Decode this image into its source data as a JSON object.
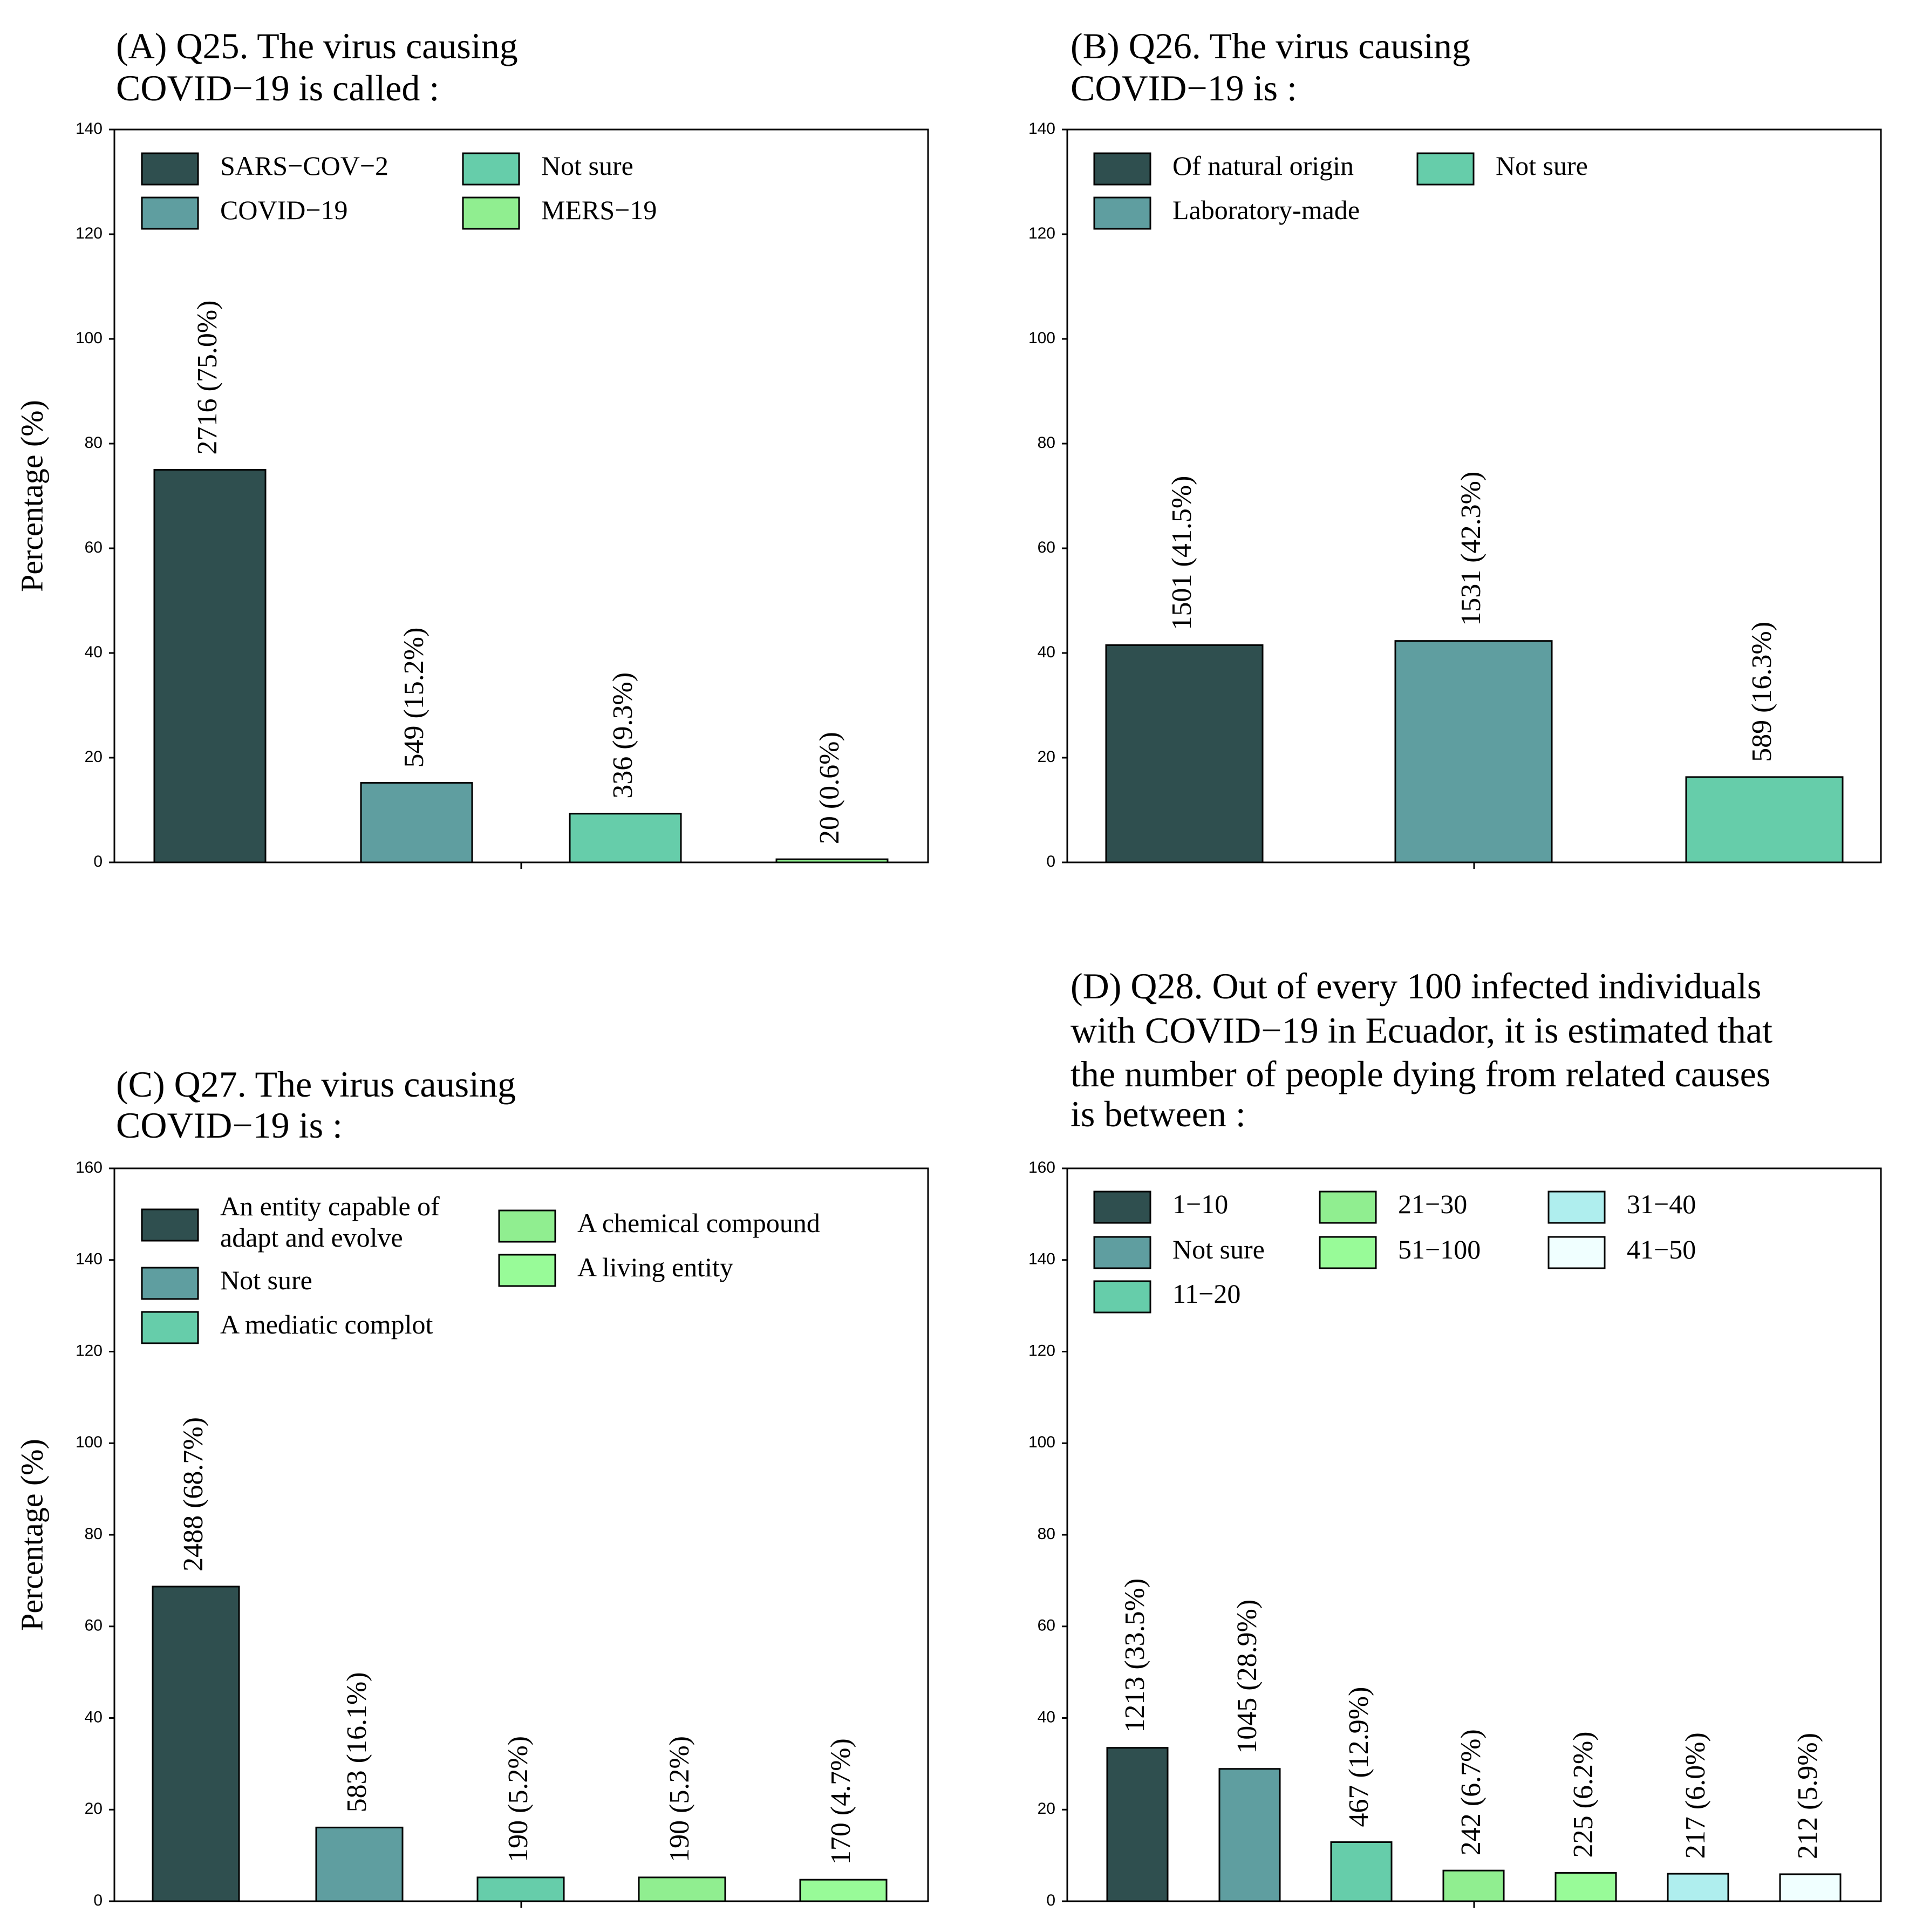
{
  "colors": {
    "c1": "#2f4f4f",
    "c2": "#5f9ea0",
    "c3": "#66cdaa",
    "c4": "#90ee90",
    "c5": "#98fb98",
    "c6": "#afeeee",
    "c7": "#f0ffff"
  },
  "chart_data": [
    {
      "type": "bar",
      "title_lines": [
        "(A) Q25. The virus causing",
        "COVID−19 is called :"
      ],
      "ylabel": "Percentage (%)",
      "ylim": [
        0,
        140
      ],
      "yticks": [
        "0",
        "20",
        "40",
        "60",
        "80",
        "100",
        "120",
        "140"
      ],
      "categories": [
        "SARS−COV−2",
        "COVID−19",
        "Not sure",
        "MERS−19"
      ],
      "values": [
        75.0,
        15.2,
        9.3,
        0.6
      ],
      "bar_labels": [
        "2716 (75.0%)",
        "549 (15.2%)",
        "336 (9.3%)",
        "20 (0.6%)"
      ],
      "bar_colors": [
        "#2f4f4f",
        "#5f9ea0",
        "#66cdaa",
        "#90ee90"
      ],
      "legend": [
        "SARS−COV−2",
        "COVID−19",
        "Not sure",
        "MERS−19"
      ]
    },
    {
      "type": "bar",
      "title_lines": [
        "(B) Q26. The virus causing",
        "COVID−19 is :"
      ],
      "ylabel": "",
      "ylim": [
        0,
        140
      ],
      "yticks": [
        "0",
        "20",
        "40",
        "60",
        "80",
        "100",
        "120",
        "140"
      ],
      "categories": [
        "Of natural origin",
        "Laboratory-made",
        "Not sure"
      ],
      "values": [
        41.5,
        42.3,
        16.3
      ],
      "bar_labels": [
        "1501 (41.5%)",
        "1531 (42.3%)",
        "589 (16.3%)"
      ],
      "bar_colors": [
        "#2f4f4f",
        "#5f9ea0",
        "#66cdaa"
      ],
      "legend": [
        "Of natural origin",
        "Laboratory-made",
        "Not sure"
      ]
    },
    {
      "type": "bar",
      "title_lines": [
        "(C) Q27. The virus causing",
        "COVID−19 is :"
      ],
      "ylabel": "Percentage (%)",
      "ylim": [
        0,
        160
      ],
      "yticks": [
        "0",
        "20",
        "40",
        "60",
        "80",
        "100",
        "120",
        "140",
        "160"
      ],
      "categories": [
        "An entity capable of adapt and evolve",
        "Not sure",
        "A mediatic complot",
        "A chemical compound",
        "A living entity"
      ],
      "values": [
        68.7,
        16.1,
        5.2,
        5.2,
        4.7
      ],
      "bar_labels": [
        "2488 (68.7%)",
        "583 (16.1%)",
        "190 (5.2%)",
        "190 (5.2%)",
        "170 (4.7%)"
      ],
      "bar_colors": [
        "#2f4f4f",
        "#5f9ea0",
        "#66cdaa",
        "#90ee90",
        "#98fb98"
      ],
      "legend": [
        "An entity capable of\nadapt and evolve",
        "Not sure",
        "A mediatic complot",
        "A chemical compound",
        "A living entity"
      ]
    },
    {
      "type": "bar",
      "title_lines": [
        "(D) Q28. Out of every 100 infected individuals",
        "with COVID−19 in Ecuador, it is estimated that",
        "the number of people dying from related causes",
        "is between :"
      ],
      "ylabel": "",
      "ylim": [
        0,
        160
      ],
      "yticks": [
        "0",
        "20",
        "40",
        "60",
        "80",
        "100",
        "120",
        "140",
        "160"
      ],
      "categories": [
        "1−10",
        "Not sure",
        "11−20",
        "21−30",
        "51−100",
        "31−40",
        "41−50"
      ],
      "values": [
        33.5,
        28.9,
        12.9,
        6.7,
        6.2,
        6.0,
        5.9
      ],
      "bar_labels": [
        "1213 (33.5%)",
        "1045 (28.9%)",
        "467 (12.9%)",
        "242 (6.7%)",
        "225 (6.2%)",
        "217 (6.0%)",
        "212 (5.9%)"
      ],
      "bar_colors": [
        "#2f4f4f",
        "#5f9ea0",
        "#66cdaa",
        "#90ee90",
        "#98fb98",
        "#afeeee",
        "#f0ffff"
      ],
      "legend": [
        "1−10",
        "Not sure",
        "11−20",
        "21−30",
        "51−100",
        "31−40",
        "41−50"
      ]
    }
  ]
}
